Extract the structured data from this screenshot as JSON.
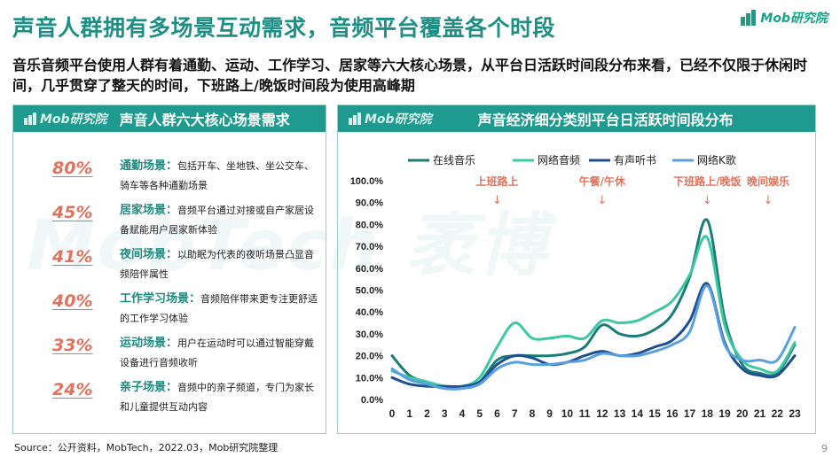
{
  "page": {
    "title": "声音人群拥有多场景互动需求，音频平台覆盖各个时段",
    "logo": "Mob研究院",
    "subtitle": "音乐音频平台使用人群有着通勤、运动、工作学习、居家等六大核心场景，从平台日活跃时间段分布来看，已经不仅限于休闲时间，几乎贯穿了整天的时间，下班路上/晚饭时间段为使用高峰期",
    "source": "Source：公开资料，MobTech，2022.03，Mob研究院整理",
    "page_number": "9",
    "watermark": "MobTech 袤博"
  },
  "left_panel": {
    "logo": "Mob研究院",
    "title": "声音人群六大核心场景需求",
    "scenes": [
      {
        "pct": "80%",
        "name": "通勤场景：",
        "desc": "包括开车、坐地铁、坐公交车、骑车等各种通勤场景"
      },
      {
        "pct": "45%",
        "name": "居家场景：",
        "desc": "音频平台通过对接或自产家居设备赋能用户居家新体验"
      },
      {
        "pct": "41%",
        "name": "夜间场景：",
        "desc": "以助眠为代表的夜听场景凸显音频陪伴属性"
      },
      {
        "pct": "40%",
        "name": "工作学习场景：",
        "desc": "音频陪伴带来更专注更舒适的工作学习体验"
      },
      {
        "pct": "33%",
        "name": "运动场景：",
        "desc": "用户在运动时可以通过智能穿戴设备进行音频收听"
      },
      {
        "pct": "24%",
        "name": "亲子场景：",
        "desc": "音频中的亲子频道，专门为家长和儿童提供互动内容"
      }
    ]
  },
  "right_panel": {
    "logo": "Mob研究院",
    "title": "声音经济细分类别平台日活跃时间段分布"
  },
  "chart_data": {
    "type": "line",
    "x": [
      0,
      1,
      2,
      3,
      4,
      5,
      6,
      7,
      8,
      9,
      10,
      11,
      12,
      13,
      14,
      15,
      16,
      17,
      18,
      19,
      20,
      21,
      22,
      23
    ],
    "ylim": [
      0,
      100
    ],
    "yticks": [
      "0.0%",
      "10.0%",
      "20.0%",
      "30.0%",
      "40.0%",
      "50.0%",
      "60.0%",
      "70.0%",
      "80.0%",
      "90.0%",
      "100.0%"
    ],
    "legend_position": "top",
    "series": [
      {
        "name": "在线音乐",
        "color": "#1b7d78",
        "values": [
          20,
          11,
          8,
          6,
          6,
          8,
          18,
          20,
          20,
          20,
          21,
          24,
          34,
          30,
          29,
          32,
          39,
          56,
          82,
          37,
          16,
          12,
          12,
          25
        ]
      },
      {
        "name": "网络音频",
        "color": "#3cc8a0",
        "values": [
          13,
          10,
          8,
          6,
          6,
          10,
          24,
          35,
          28,
          28,
          29,
          28,
          36,
          35,
          36,
          40,
          45,
          57,
          74,
          34,
          18,
          14,
          13,
          26
        ]
      },
      {
        "name": "有声听书",
        "color": "#1f4f8f",
        "values": [
          10,
          7,
          6,
          6,
          6,
          8,
          16,
          20,
          19,
          16,
          17,
          20,
          22,
          20,
          21,
          24,
          27,
          36,
          53,
          26,
          14,
          11,
          11,
          20
        ]
      },
      {
        "name": "网络K歌",
        "color": "#5aa0e0",
        "values": [
          14,
          9,
          7,
          5,
          5,
          7,
          14,
          17,
          16,
          16,
          17,
          18,
          21,
          20,
          20,
          22,
          25,
          31,
          52,
          25,
          18,
          18,
          18,
          33
        ]
      }
    ],
    "annotations": [
      {
        "label": "上班路上",
        "x": 6
      },
      {
        "label": "午餐/午休",
        "x": 12
      },
      {
        "label": "下班路上/晚饭",
        "x": 18
      },
      {
        "label": "晚间娱乐",
        "x": 23
      }
    ],
    "annotation_arrow": "↓"
  }
}
